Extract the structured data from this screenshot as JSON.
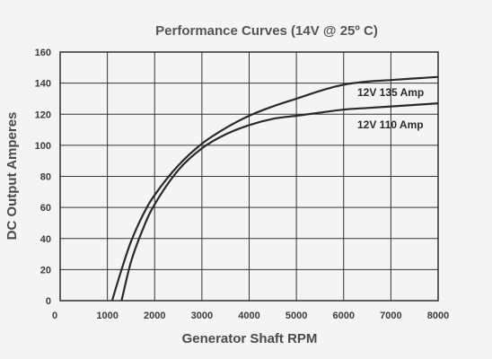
{
  "chart_data": {
    "type": "line",
    "title": "Performance Curves (14V @ 25º C)",
    "xlabel": "Generator Shaft RPM",
    "ylabel": "DC Output Amperes",
    "xlim": [
      0,
      8000
    ],
    "ylim": [
      0,
      160
    ],
    "x_ticks": [
      "0",
      "1000",
      "2000",
      "3000",
      "4000",
      "5000",
      "6000",
      "7000",
      "8000"
    ],
    "y_ticks": [
      "0",
      "20",
      "40",
      "60",
      "80",
      "100",
      "120",
      "140",
      "160"
    ],
    "grid": true,
    "series": [
      {
        "name": "12V 135 Amp",
        "x": [
          1300,
          1500,
          1750,
          2000,
          2500,
          3000,
          3500,
          4000,
          4500,
          5000,
          5500,
          6000,
          6500,
          7000,
          7500,
          8000
        ],
        "y": [
          0,
          25,
          46,
          62,
          84,
          98,
          107,
          113,
          117,
          119,
          121,
          123,
          124,
          125,
          126,
          127
        ]
      },
      {
        "name": "12V 110 Amp",
        "x": [
          1100,
          1300,
          1500,
          1750,
          2000,
          2500,
          3000,
          3500,
          4000,
          4500,
          5000,
          5500,
          6000,
          6500,
          7000,
          7500,
          8000
        ],
        "y": [
          0,
          20,
          38,
          55,
          68,
          87,
          101,
          111,
          119,
          125,
          130,
          135,
          139,
          141,
          142,
          143,
          144
        ]
      }
    ],
    "line_color": "#2a2a2a"
  }
}
